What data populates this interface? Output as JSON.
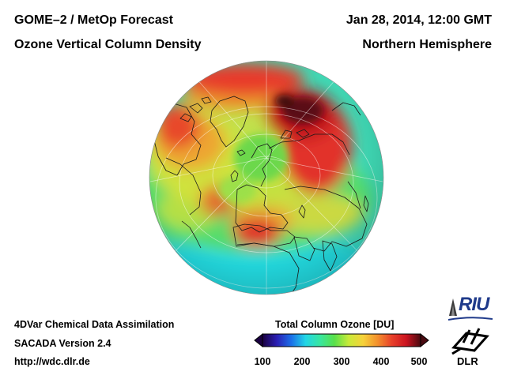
{
  "header": {
    "title_left": "GOME–2 / MetOp Forecast",
    "subtitle_left": "Ozone Vertical Column Density",
    "title_right": "Jan 28, 2014, 12:00 GMT",
    "subtitle_right": "Northern Hemisphere"
  },
  "footer": {
    "line1": "4DVar Chemical Data Assimilation",
    "line2": "SACADA Version 2.4",
    "line3": "http://wdc.dlr.de"
  },
  "colorbar": {
    "title": "Total Column Ozone [DU]",
    "ticks": [
      "100",
      "200",
      "300",
      "400",
      "500"
    ],
    "min": 100,
    "max": 500,
    "colors": [
      "#1a0040",
      "#2a1fb4",
      "#1b6fe8",
      "#22d6e6",
      "#38e6a0",
      "#58e04a",
      "#c9ea3a",
      "#f6d23a",
      "#f3902c",
      "#e8402a",
      "#cc1420",
      "#4a0a10"
    ]
  },
  "logos": {
    "riu": "RIU",
    "dlr": "DLR"
  }
}
